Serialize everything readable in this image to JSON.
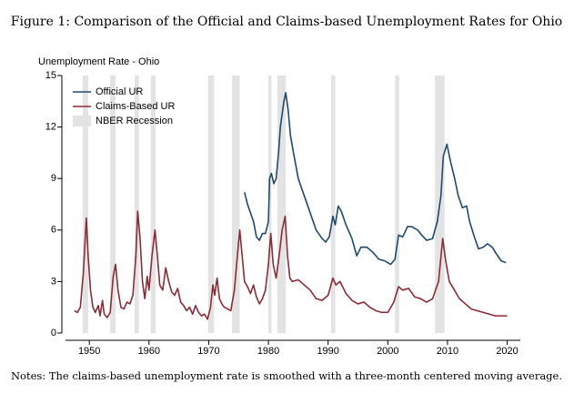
{
  "chart_data": {
    "type": "line",
    "title": "Figure 1: Comparison of the Official and Claims-based Unemployment Rates for Ohio",
    "y_label": "Unemployment Rate - Ohio",
    "note": "Notes: The claims-based unemployment rate is smoothed with a three-month centered moving average.",
    "xlim": [
      1945.4,
      2022.2
    ],
    "xticks": [
      1950,
      1960,
      1970,
      1980,
      1990,
      2000,
      2010,
      2020
    ],
    "ylim": [
      0,
      15
    ],
    "yticks": [
      0,
      3,
      6,
      9,
      12,
      15
    ],
    "legend": "top-left",
    "recessions": {
      "name": "NBER Recession",
      "color": "#e3e3e3",
      "periods": [
        [
          1948.9,
          1949.8
        ],
        [
          1953.5,
          1954.4
        ],
        [
          1957.6,
          1958.3
        ],
        [
          1960.3,
          1961.1
        ],
        [
          1969.9,
          1970.9
        ],
        [
          1973.9,
          1975.2
        ],
        [
          1980.0,
          1980.5
        ],
        [
          1981.5,
          1982.9
        ],
        [
          1990.5,
          1991.2
        ],
        [
          2001.2,
          2001.9
        ],
        [
          2007.9,
          2009.5
        ]
      ]
    },
    "series": [
      {
        "name": "Official UR",
        "color": "#1f4a6e",
        "x": [
          1976,
          1976.5,
          1977,
          1977.5,
          1978,
          1978.5,
          1979,
          1979.5,
          1980,
          1980.2,
          1980.5,
          1980.9,
          1981.3,
          1981.7,
          1982,
          1982.6,
          1982.9,
          1983.3,
          1983.7,
          1984.2,
          1985,
          1986,
          1987,
          1988,
          1989,
          1989.6,
          1990.2,
          1990.8,
          1991.2,
          1991.7,
          1992.2,
          1993,
          1994,
          1994.8,
          1995.5,
          1996.5,
          1997.5,
          1998.5,
          1999.5,
          2000.5,
          2001.2,
          2001.8,
          2002.5,
          2003.3,
          2004,
          2005,
          2005.7,
          2006.5,
          2007.5,
          2008.3,
          2008.9,
          2009.3,
          2009.9,
          2010.5,
          2011.2,
          2011.8,
          2012.5,
          2013.2,
          2013.7,
          2014.5,
          2015.2,
          2016,
          2016.7,
          2017.5,
          2018.2,
          2019,
          2019.8
        ],
        "values": [
          8.2,
          7.5,
          7.0,
          6.5,
          5.6,
          5.4,
          5.8,
          5.8,
          6.5,
          9.0,
          9.3,
          8.7,
          9.0,
          10.5,
          12.0,
          13.5,
          14.0,
          13.0,
          11.5,
          10.5,
          9.0,
          8.0,
          7.0,
          6.0,
          5.5,
          5.3,
          5.6,
          6.8,
          6.3,
          7.4,
          7.1,
          6.3,
          5.5,
          4.5,
          5.0,
          5.0,
          4.7,
          4.3,
          4.2,
          4.0,
          4.3,
          5.7,
          5.6,
          6.2,
          6.2,
          6.0,
          5.7,
          5.4,
          5.5,
          6.5,
          8.0,
          10.3,
          11.0,
          10.0,
          9.0,
          8.0,
          7.3,
          7.4,
          6.5,
          5.6,
          4.9,
          5.0,
          5.2,
          5.0,
          4.6,
          4.2,
          4.1
        ]
      },
      {
        "name": "Claims-Based UR",
        "color": "#8c2b35",
        "x": [
          1947.5,
          1948,
          1948.5,
          1949,
          1949.5,
          1949.8,
          1950.2,
          1950.6,
          1951,
          1951.5,
          1951.8,
          1952.2,
          1952.5,
          1953,
          1953.5,
          1954,
          1954.4,
          1954.8,
          1955.3,
          1955.8,
          1956.3,
          1956.8,
          1957.3,
          1957.8,
          1958.1,
          1958.5,
          1958.9,
          1959.3,
          1959.7,
          1960,
          1960.5,
          1961,
          1961.4,
          1961.8,
          1962.3,
          1962.8,
          1963.3,
          1963.8,
          1964.3,
          1964.8,
          1965.3,
          1965.8,
          1966.3,
          1966.8,
          1967.3,
          1967.8,
          1968.3,
          1968.8,
          1969.3,
          1969.8,
          1970.3,
          1970.7,
          1971,
          1971.4,
          1971.8,
          1972.2,
          1972.6,
          1973.2,
          1973.7,
          1974.3,
          1974.8,
          1975.2,
          1975.6,
          1976,
          1976.5,
          1977,
          1977.5,
          1978,
          1978.5,
          1979,
          1979.5,
          1980,
          1980.4,
          1980.8,
          1981.3,
          1981.8,
          1982.3,
          1982.8,
          1983.2,
          1983.6,
          1984,
          1985,
          1986,
          1987,
          1988,
          1989,
          1990,
          1990.8,
          1991.3,
          1992,
          1993,
          1994,
          1995,
          1996,
          1997,
          1998,
          1999,
          2000,
          2001,
          2001.8,
          2002.5,
          2003.5,
          2004.5,
          2005.5,
          2006.5,
          2007.5,
          2008.5,
          2009.2,
          2009.7,
          2010.3,
          2011,
          2012,
          2013,
          2014,
          2015,
          2016,
          2017,
          2018,
          2019,
          2020
        ],
        "values": [
          1.3,
          1.2,
          1.5,
          3.5,
          6.7,
          4.5,
          2.5,
          1.5,
          1.2,
          1.6,
          1.0,
          1.9,
          1.1,
          0.9,
          1.2,
          3.3,
          4.0,
          2.5,
          1.5,
          1.4,
          1.8,
          1.7,
          2.2,
          4.5,
          7.1,
          5.5,
          3.0,
          2.0,
          3.3,
          2.5,
          4.5,
          6.0,
          4.5,
          2.8,
          2.5,
          3.8,
          3.0,
          2.4,
          2.2,
          2.6,
          1.8,
          1.6,
          1.3,
          1.5,
          1.1,
          1.6,
          1.2,
          1.0,
          1.1,
          0.8,
          1.5,
          2.8,
          2.2,
          3.2,
          2.0,
          1.7,
          1.5,
          1.4,
          1.3,
          2.5,
          4.5,
          6.0,
          4.5,
          3.0,
          2.7,
          2.3,
          2.8,
          2.1,
          1.7,
          2.0,
          2.5,
          4.0,
          5.8,
          4.0,
          3.2,
          4.5,
          6.0,
          6.8,
          4.5,
          3.2,
          3.0,
          3.1,
          2.8,
          2.5,
          2.0,
          1.9,
          2.2,
          3.2,
          2.8,
          3.0,
          2.3,
          1.9,
          1.7,
          1.8,
          1.5,
          1.3,
          1.2,
          1.2,
          1.8,
          2.7,
          2.5,
          2.6,
          2.1,
          2.0,
          1.8,
          2.0,
          3.0,
          5.5,
          4.2,
          3.0,
          2.6,
          2.0,
          1.7,
          1.4,
          1.3,
          1.2,
          1.1,
          1.0,
          1.0,
          1.0
        ]
      }
    ]
  }
}
